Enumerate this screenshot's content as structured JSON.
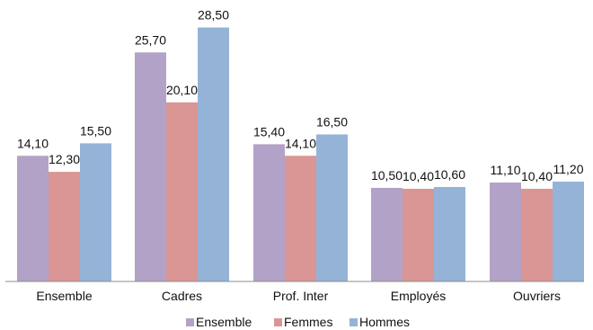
{
  "chart_data": {
    "type": "bar",
    "title": "",
    "xlabel": "",
    "ylabel": "",
    "ylim": [
      0,
      30
    ],
    "grid": false,
    "legend_position": "bottom",
    "categories": [
      "Ensemble",
      "Cadres",
      "Prof. Inter",
      "Employés",
      "Ouvriers"
    ],
    "series": [
      {
        "name": "Ensemble",
        "color": "#b3a2c7",
        "values": [
          14.1,
          25.7,
          15.4,
          10.5,
          11.1
        ],
        "labels": [
          "14,10",
          "25,70",
          "15,40",
          "10,50",
          "11,10"
        ]
      },
      {
        "name": "Femmes",
        "color": "#d99694",
        "values": [
          12.3,
          20.1,
          14.1,
          10.4,
          10.4
        ],
        "labels": [
          "12,30",
          "20,10",
          "14,10",
          "10,40",
          "10,40"
        ]
      },
      {
        "name": "Hommes",
        "color": "#95b3d7",
        "values": [
          15.5,
          28.5,
          16.5,
          10.6,
          11.2
        ],
        "labels": [
          "15,50",
          "28,50",
          "16,50",
          "10,60",
          "11,20"
        ]
      }
    ]
  }
}
